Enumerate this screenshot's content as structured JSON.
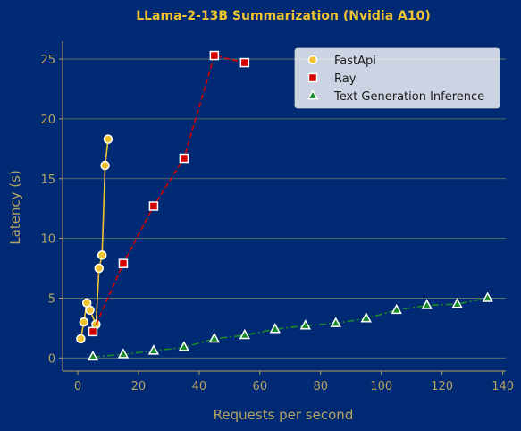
{
  "chart_data": {
    "type": "line",
    "title": "LLama-2-13B Summarization (Nvidia A10)",
    "xlabel": "Requests per second",
    "ylabel": "Latency (s)",
    "xlim": [
      -5,
      141
    ],
    "ylim": [
      -1.1,
      26.5
    ],
    "xticks": [
      0,
      20,
      40,
      60,
      80,
      100,
      120,
      140
    ],
    "yticks": [
      0,
      5,
      10,
      15,
      20,
      25
    ],
    "grid": "horizontal",
    "legend_position": "top-right",
    "colors": {
      "background": "#002a73",
      "text": "#b4a363",
      "title": "#f0c330",
      "grid": "#6d7c66"
    },
    "series": [
      {
        "name": "FastApi",
        "marker": "circle",
        "line_style": "solid",
        "color": "#f0c330",
        "x": [
          1,
          2,
          3,
          4,
          6,
          7,
          8,
          9,
          10
        ],
        "y": [
          1.6,
          3.0,
          4.6,
          4.0,
          2.8,
          7.5,
          8.6,
          16.1,
          18.3
        ]
      },
      {
        "name": "Ray",
        "marker": "square",
        "line_style": "dashed",
        "color": "#d40000",
        "x": [
          5,
          15,
          25,
          35,
          45,
          55
        ],
        "y": [
          2.2,
          7.9,
          12.7,
          16.7,
          25.3,
          24.7
        ]
      },
      {
        "name": "Text Generation Inference",
        "marker": "triangle",
        "line_style": "dashdot",
        "color": "#1a8a2a",
        "x": [
          5,
          15,
          25,
          35,
          45,
          55,
          65,
          75,
          85,
          95,
          105,
          115,
          125,
          135
        ],
        "y": [
          0.1,
          0.3,
          0.6,
          0.9,
          1.6,
          1.9,
          2.4,
          2.7,
          2.9,
          3.3,
          4.0,
          4.4,
          4.5,
          5.0
        ]
      }
    ]
  }
}
